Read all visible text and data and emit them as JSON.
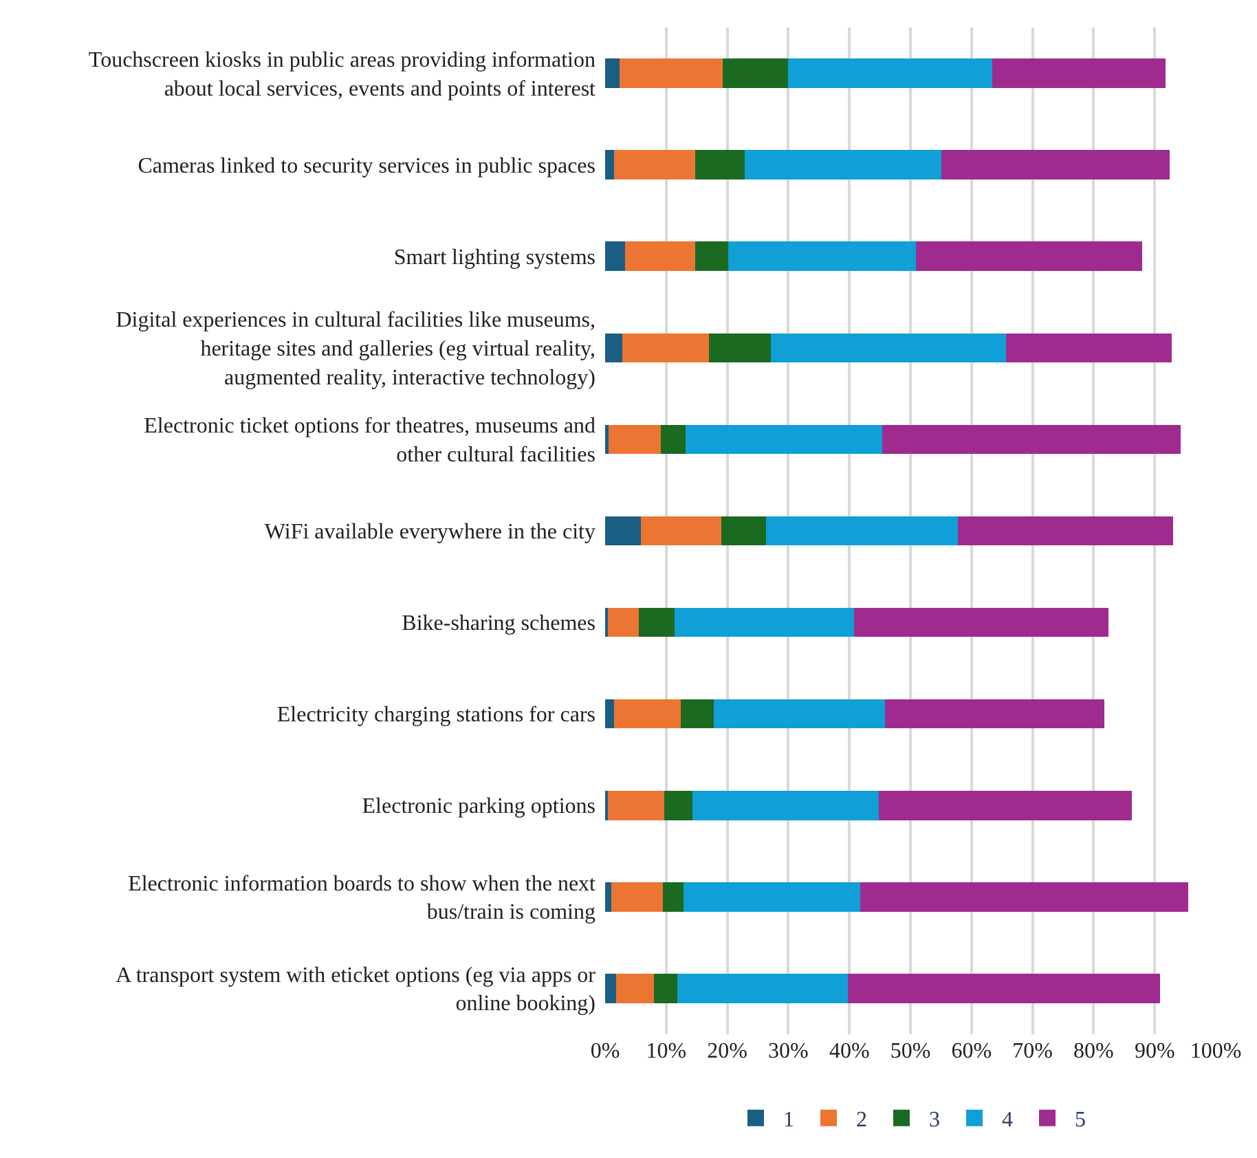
{
  "chart_data": {
    "type": "bar",
    "orientation": "horizontal",
    "stacked": true,
    "categories": [
      "Touchscreen kiosks in public areas providing information about local services, events and points of interest",
      "Cameras linked to security services in public spaces",
      "Smart lighting systems",
      "Digital experiences in cultural facilities like museums, heritage sites and galleries (eg virtual reality, augmented reality, interactive technology)",
      "Electronic ticket options for theatres, museums and other cultural facilities",
      "WiFi available everywhere in the city",
      "Bike-sharing schemes",
      "Electricity charging stations for cars",
      "Electronic parking options",
      "Electronic information boards to show when the next bus/train is coming",
      "A transport system with eticket options (eg via apps or online booking)"
    ],
    "series": [
      {
        "name": "1",
        "color": "#1a5e84",
        "values": [
          2.4,
          1.5,
          3.3,
          2.8,
          0.6,
          5.9,
          0.4,
          1.5,
          0.5,
          1.0,
          1.8
        ]
      },
      {
        "name": "2",
        "color": "#ec7533",
        "values": [
          16.8,
          13.3,
          11.5,
          14.2,
          8.5,
          13.1,
          5.1,
          10.9,
          9.2,
          8.5,
          6.2
        ]
      },
      {
        "name": "3",
        "color": "#1b6a22",
        "values": [
          10.8,
          8.1,
          5.4,
          10.1,
          4.1,
          7.4,
          5.9,
          5.4,
          4.6,
          3.3,
          3.8
        ]
      },
      {
        "name": "4",
        "color": "#109fd6",
        "values": [
          33.4,
          32.2,
          30.7,
          38.6,
          32.2,
          31.4,
          29.4,
          28.0,
          30.5,
          29.0,
          28.0
        ]
      },
      {
        "name": "5",
        "color": "#9f2b8f",
        "values": [
          28.4,
          37.4,
          37.0,
          27.1,
          48.9,
          35.2,
          41.6,
          35.9,
          41.5,
          53.7,
          51.1
        ]
      }
    ],
    "xlim": [
      0,
      100
    ],
    "xticks": [
      {
        "value": 0,
        "label": "0%"
      },
      {
        "value": 10,
        "label": "10%"
      },
      {
        "value": 20,
        "label": "20%"
      },
      {
        "value": 30,
        "label": "30%"
      },
      {
        "value": 40,
        "label": "40%"
      },
      {
        "value": 50,
        "label": "50%"
      },
      {
        "value": 60,
        "label": "60%"
      },
      {
        "value": 70,
        "label": "70%"
      },
      {
        "value": 80,
        "label": "80%"
      },
      {
        "value": 90,
        "label": "90%"
      },
      {
        "value": 100,
        "label": "100%"
      }
    ],
    "grid": "x",
    "legend": "bottom"
  }
}
